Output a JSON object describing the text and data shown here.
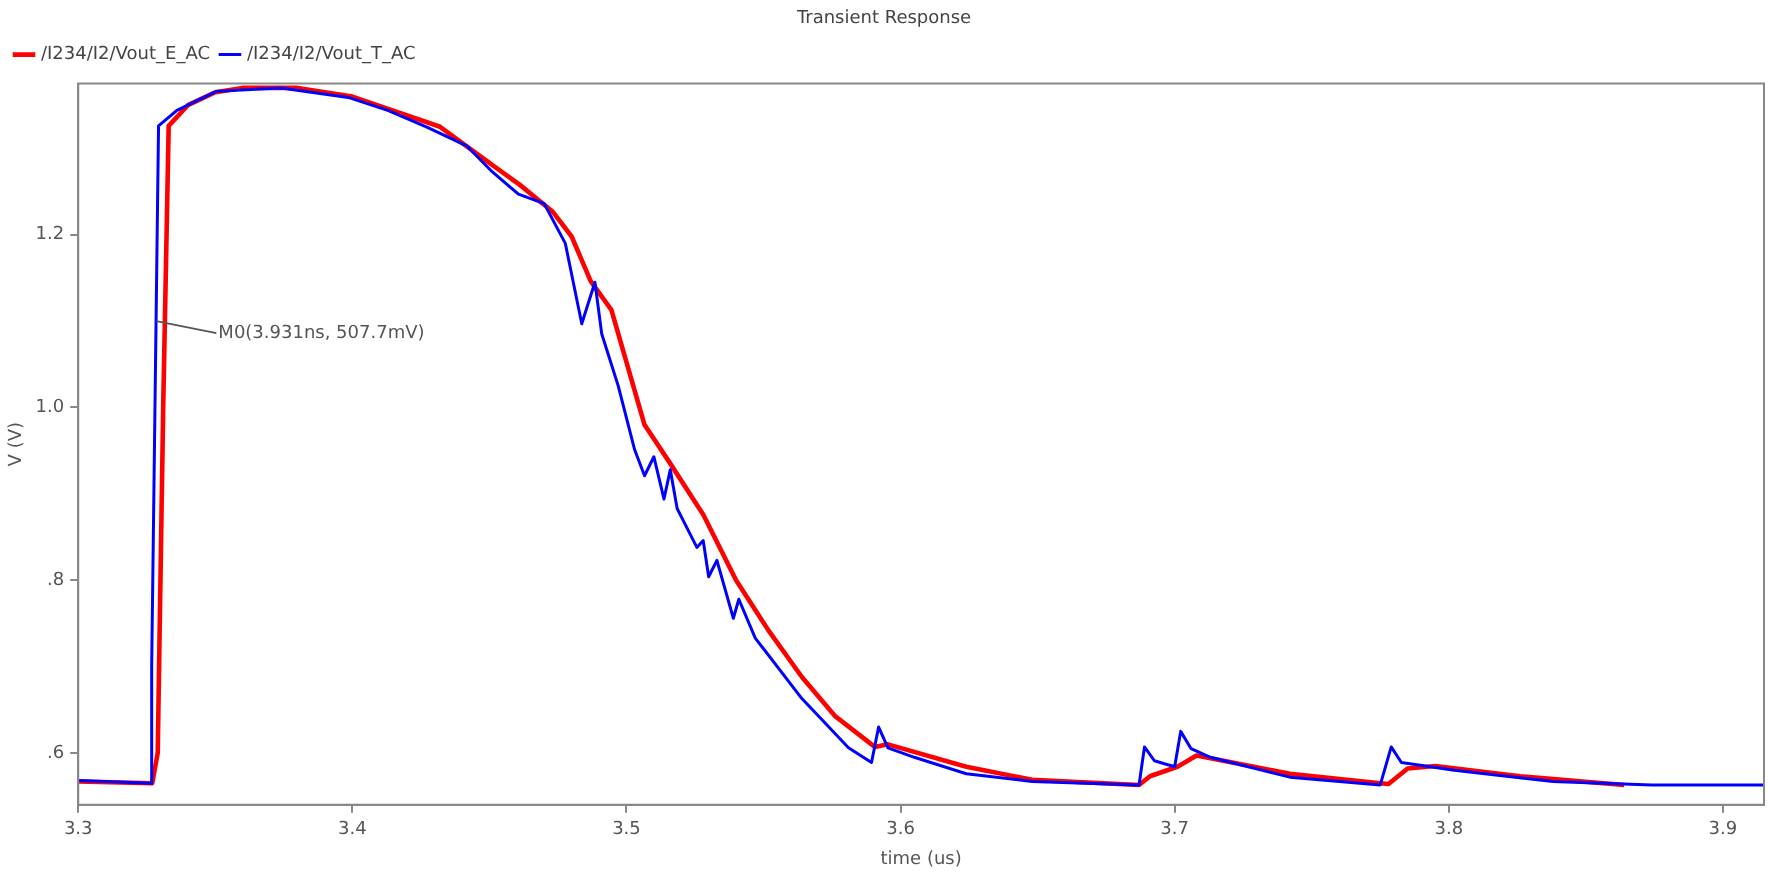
{
  "chart_data": {
    "type": "line",
    "title": "Transient Response",
    "xlabel": "time (us)",
    "ylabel": "V (V)",
    "xlim": [
      3.3,
      3.915
    ],
    "xticks": [
      3.3,
      3.4,
      3.5,
      3.6,
      3.7,
      3.8,
      3.9
    ],
    "ylim": [
      0.54,
      1.375
    ],
    "yticks": [
      {
        "value": 0.6,
        "label": ".6"
      },
      {
        "value": 0.8,
        "label": ".8"
      },
      {
        "value": 1.0,
        "label": "1.0"
      },
      {
        "value": 1.2,
        "label": "1.2"
      }
    ],
    "grid": false,
    "legend": "top left",
    "marker": "none",
    "line_style": "solid",
    "annotations": [
      {
        "text": "M0(3.931ns, 507.7mV)",
        "x": 3.3285,
        "y": 1.1
      }
    ],
    "series": [
      {
        "name": "/I234/I2/Vout_E_AC",
        "color": "#ff0000",
        "x": [
          3.3,
          3.327,
          3.329,
          3.331,
          3.333,
          3.34,
          3.35,
          3.36,
          3.38,
          3.4,
          3.432,
          3.451,
          3.461,
          3.473,
          3.48,
          3.487,
          3.4945,
          3.5066,
          3.516,
          3.528,
          3.54,
          3.552,
          3.564,
          3.576,
          3.5906,
          3.5954,
          3.624,
          3.648,
          3.687,
          3.691,
          3.701,
          3.708,
          3.742,
          3.775,
          3.778,
          3.785,
          3.795,
          3.826,
          3.864
        ],
        "values": [
          0.567,
          0.565,
          0.6,
          1.0,
          1.326,
          1.35,
          1.365,
          1.37,
          1.37,
          1.36,
          1.325,
          1.281,
          1.258,
          1.227,
          1.198,
          1.146,
          1.113,
          0.98,
          0.935,
          0.876,
          0.8,
          0.741,
          0.688,
          0.643,
          0.607,
          0.61,
          0.584,
          0.569,
          0.563,
          0.573,
          0.584,
          0.597,
          0.576,
          0.565,
          0.564,
          0.582,
          0.585,
          0.573,
          0.563
        ]
      },
      {
        "name": "/I234/I2/Vout_T_AC",
        "color": "#0000ff",
        "x": [
          3.3,
          3.3264,
          3.3268,
          3.3293,
          3.336,
          3.3504,
          3.374,
          3.3985,
          3.4129,
          3.427,
          3.4417,
          3.451,
          3.4606,
          3.47,
          3.4777,
          3.4837,
          3.4885,
          3.491,
          3.497,
          3.503,
          3.5066,
          3.51,
          3.5137,
          3.516,
          3.5185,
          3.5257,
          3.528,
          3.53,
          3.533,
          3.539,
          3.541,
          3.547,
          3.564,
          3.581,
          3.5894,
          3.592,
          3.5954,
          3.605,
          3.624,
          3.648,
          3.687,
          3.689,
          3.6926,
          3.7,
          3.7022,
          3.706,
          3.713,
          3.742,
          3.775,
          3.779,
          3.7827,
          3.802,
          3.838,
          3.874,
          3.915
        ],
        "values": [
          0.568,
          0.565,
          0.7,
          1.326,
          1.344,
          1.366,
          1.37,
          1.359,
          1.344,
          1.325,
          1.303,
          1.273,
          1.247,
          1.236,
          1.19,
          1.097,
          1.145,
          1.085,
          1.025,
          0.951,
          0.921,
          0.943,
          0.894,
          0.928,
          0.883,
          0.838,
          0.846,
          0.804,
          0.823,
          0.756,
          0.778,
          0.733,
          0.663,
          0.606,
          0.589,
          0.63,
          0.606,
          0.595,
          0.576,
          0.567,
          0.563,
          0.607,
          0.591,
          0.584,
          0.625,
          0.605,
          0.595,
          0.572,
          0.563,
          0.607,
          0.589,
          0.58,
          0.567,
          0.563,
          0.563
        ]
      }
    ]
  }
}
